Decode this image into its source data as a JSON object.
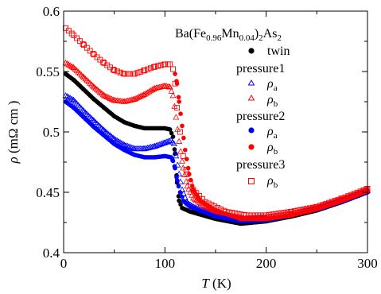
{
  "chart_data": {
    "type": "scatter",
    "title": "",
    "xlabel": {
      "italic": "T",
      "rest": " (K)"
    },
    "ylabel": {
      "italic": "ρ",
      "rest": " (mΩ cm )"
    },
    "xlim": [
      0,
      300
    ],
    "ylim": [
      0.4,
      0.6
    ],
    "xticks": [
      0,
      100,
      200,
      300
    ],
    "yticks": [
      0.4,
      0.45,
      0.5,
      0.55,
      0.6
    ],
    "ytick_labels": [
      "0.4",
      "0.45",
      "0.5",
      "0.55",
      "0.6"
    ],
    "grid": false,
    "legend_position": "top-right",
    "legend": {
      "compound": {
        "a": "Ba(Fe",
        "s1": "0.96",
        "b": "Mn",
        "s2": "0.04",
        "c": ")",
        "s3": "2",
        "d": "As",
        "s4": "2"
      },
      "groups": [
        {
          "title": "",
          "entries": [
            {
              "marker": "filled-circle",
              "color": "#000000",
              "label": "twin",
              "sub": ""
            }
          ]
        },
        {
          "title": "pressure1",
          "entries": [
            {
              "marker": "open-triangle",
              "color": "#0000ff",
              "label": "ρ",
              "sub": "a"
            },
            {
              "marker": "open-triangle",
              "color": "#ff0000",
              "label": "ρ",
              "sub": "b"
            }
          ]
        },
        {
          "title": "pressure2",
          "entries": [
            {
              "marker": "filled-circle",
              "color": "#0000ff",
              "label": "ρ",
              "sub": "a"
            },
            {
              "marker": "filled-circle",
              "color": "#ff0000",
              "label": "ρ",
              "sub": "b"
            }
          ]
        },
        {
          "title": "pressure3",
          "entries": [
            {
              "marker": "open-square",
              "color": "#ff0000",
              "label": "ρ",
              "sub": "b"
            }
          ]
        }
      ]
    },
    "series": [
      {
        "key": "twin",
        "marker": "filled-circle",
        "color": "#000000",
        "step": 1.5,
        "points": [
          [
            2,
            0.548
          ],
          [
            10,
            0.543
          ],
          [
            20,
            0.535
          ],
          [
            30,
            0.527
          ],
          [
            40,
            0.52
          ],
          [
            50,
            0.513
          ],
          [
            60,
            0.508
          ],
          [
            70,
            0.505
          ],
          [
            80,
            0.503
          ],
          [
            90,
            0.503
          ],
          [
            100,
            0.503
          ],
          [
            105,
            0.502
          ],
          [
            108,
            0.496
          ],
          [
            110,
            0.482
          ],
          [
            112,
            0.458
          ],
          [
            114,
            0.443
          ],
          [
            117,
            0.437
          ],
          [
            125,
            0.434
          ],
          [
            150,
            0.428
          ],
          [
            175,
            0.424
          ],
          [
            200,
            0.426
          ],
          [
            225,
            0.43
          ],
          [
            250,
            0.435
          ],
          [
            275,
            0.442
          ],
          [
            300,
            0.45
          ]
        ]
      },
      {
        "key": "p1_rho_a",
        "marker": "open-triangle",
        "color": "#0000ff",
        "step": 1.5,
        "points": [
          [
            2,
            0.53
          ],
          [
            10,
            0.526
          ],
          [
            20,
            0.517
          ],
          [
            30,
            0.509
          ],
          [
            40,
            0.501
          ],
          [
            50,
            0.494
          ],
          [
            60,
            0.489
          ],
          [
            70,
            0.486
          ],
          [
            80,
            0.486
          ],
          [
            90,
            0.488
          ],
          [
            100,
            0.491
          ],
          [
            106,
            0.493
          ],
          [
            109,
            0.49
          ],
          [
            111,
            0.48
          ],
          [
            114,
            0.465
          ],
          [
            117,
            0.452
          ],
          [
            122,
            0.441
          ],
          [
            130,
            0.437
          ],
          [
            150,
            0.432
          ],
          [
            175,
            0.428
          ],
          [
            200,
            0.429
          ],
          [
            225,
            0.432
          ],
          [
            250,
            0.436
          ],
          [
            275,
            0.443
          ],
          [
            300,
            0.451
          ]
        ]
      },
      {
        "key": "p1_rho_b",
        "marker": "open-triangle",
        "color": "#ff0000",
        "step": 1.5,
        "points": [
          [
            2,
            0.557
          ],
          [
            10,
            0.553
          ],
          [
            20,
            0.545
          ],
          [
            30,
            0.537
          ],
          [
            40,
            0.53
          ],
          [
            50,
            0.526
          ],
          [
            60,
            0.525
          ],
          [
            70,
            0.527
          ],
          [
            80,
            0.531
          ],
          [
            90,
            0.536
          ],
          [
            100,
            0.538
          ],
          [
            105,
            0.537
          ],
          [
            108,
            0.53
          ],
          [
            111,
            0.512
          ],
          [
            114,
            0.492
          ],
          [
            118,
            0.47
          ],
          [
            122,
            0.455
          ],
          [
            128,
            0.445
          ],
          [
            140,
            0.438
          ],
          [
            160,
            0.431
          ],
          [
            180,
            0.428
          ],
          [
            200,
            0.429
          ],
          [
            225,
            0.432
          ],
          [
            250,
            0.437
          ],
          [
            275,
            0.444
          ],
          [
            300,
            0.452
          ]
        ]
      },
      {
        "key": "p2_rho_a",
        "marker": "filled-circle",
        "color": "#0000ff",
        "step": 1.5,
        "points": [
          [
            2,
            0.525
          ],
          [
            10,
            0.52
          ],
          [
            20,
            0.512
          ],
          [
            30,
            0.504
          ],
          [
            40,
            0.497
          ],
          [
            50,
            0.49
          ],
          [
            60,
            0.485
          ],
          [
            70,
            0.481
          ],
          [
            80,
            0.479
          ],
          [
            90,
            0.479
          ],
          [
            100,
            0.48
          ],
          [
            106,
            0.479
          ],
          [
            108,
            0.476
          ],
          [
            110,
            0.47
          ],
          [
            112,
            0.46
          ],
          [
            115,
            0.45
          ],
          [
            118,
            0.443
          ],
          [
            125,
            0.438
          ],
          [
            150,
            0.43
          ],
          [
            175,
            0.426
          ],
          [
            200,
            0.427
          ],
          [
            225,
            0.431
          ],
          [
            250,
            0.436
          ],
          [
            275,
            0.443
          ],
          [
            300,
            0.451
          ]
        ]
      },
      {
        "key": "p2_rho_b",
        "marker": "filled-circle",
        "color": "#ff0000",
        "step": 1.5,
        "points": [
          [
            110,
            0.548
          ],
          [
            112,
            0.54
          ],
          [
            114,
            0.525
          ],
          [
            117,
            0.505
          ],
          [
            120,
            0.485
          ],
          [
            124,
            0.465
          ],
          [
            128,
            0.452
          ],
          [
            135,
            0.443
          ],
          [
            150,
            0.435
          ],
          [
            175,
            0.428
          ],
          [
            200,
            0.428
          ],
          [
            225,
            0.431
          ],
          [
            250,
            0.436
          ],
          [
            275,
            0.443
          ],
          [
            300,
            0.451
          ]
        ]
      },
      {
        "key": "p3_rho_b",
        "marker": "open-square",
        "color": "#ff0000",
        "step": 3,
        "points": [
          [
            2,
            0.586
          ],
          [
            10,
            0.58
          ],
          [
            20,
            0.572
          ],
          [
            30,
            0.564
          ],
          [
            40,
            0.557
          ],
          [
            50,
            0.551
          ],
          [
            60,
            0.548
          ],
          [
            70,
            0.548
          ],
          [
            80,
            0.551
          ],
          [
            90,
            0.554
          ],
          [
            100,
            0.556
          ],
          [
            105,
            0.556
          ],
          [
            108,
            0.552
          ],
          [
            110,
            0.54
          ],
          [
            112,
            0.52
          ],
          [
            115,
            0.5
          ],
          [
            118,
            0.48
          ],
          [
            122,
            0.465
          ],
          [
            128,
            0.452
          ],
          [
            140,
            0.442
          ],
          [
            160,
            0.434
          ],
          [
            180,
            0.431
          ],
          [
            200,
            0.431
          ],
          [
            225,
            0.434
          ],
          [
            250,
            0.438
          ],
          [
            275,
            0.445
          ],
          [
            300,
            0.453
          ]
        ]
      }
    ]
  }
}
